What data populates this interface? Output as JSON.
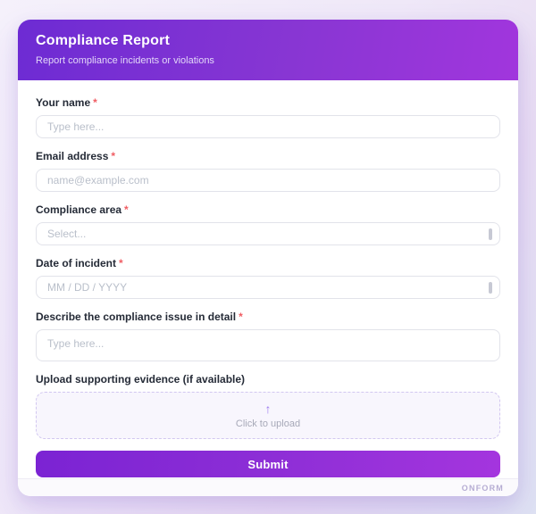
{
  "header": {
    "title": "Compliance Report",
    "subtitle": "Report compliance incidents or violations"
  },
  "misc": {
    "required_marker": "*"
  },
  "fields": [
    {
      "label": "Your name",
      "required": true,
      "placeholder": "Type here...",
      "type": "text"
    },
    {
      "label": "Email address",
      "required": true,
      "placeholder": "name@example.com",
      "type": "email"
    },
    {
      "label": "Compliance area",
      "required": true,
      "placeholder": "Select...",
      "type": "select"
    },
    {
      "label": "Date of incident",
      "required": true,
      "placeholder": "MM / DD / YYYY",
      "type": "date"
    },
    {
      "label": "Describe the compliance issue in detail",
      "required": true,
      "placeholder": "Type here...",
      "type": "textarea"
    },
    {
      "label": "Upload supporting evidence (if available)",
      "required": false,
      "type": "file"
    }
  ],
  "upload": {
    "arrow_icon": "↑",
    "text": "Click to upload"
  },
  "submit": {
    "label": "Submit"
  },
  "footer": {
    "brand": "ONFORM"
  },
  "colors": {
    "header_gradient_start": "#6d2bd3",
    "header_gradient_end": "#a136dd",
    "submit_gradient_start": "#7b23d3",
    "submit_gradient_end": "#a435de",
    "required": "#f05d63",
    "input_border": "#e2e3ea",
    "upload_bg": "#f8f6fd",
    "upload_border": "#d2c7f0",
    "page_bg_start": "#f5f1fb",
    "page_bg_end": "#dfe3f3"
  }
}
